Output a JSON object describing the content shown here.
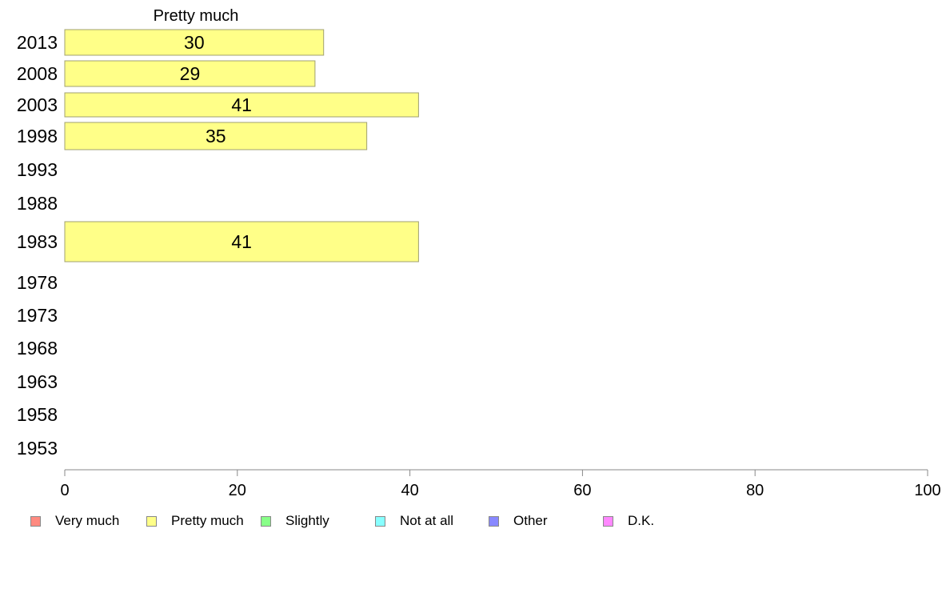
{
  "chart_data": {
    "type": "bar",
    "orientation": "horizontal",
    "title": "Pretty much",
    "categories": [
      "2013",
      "2008",
      "2003",
      "1998",
      "1993",
      "1988",
      "1983",
      "1978",
      "1973",
      "1968",
      "1963",
      "1958",
      "1953"
    ],
    "series": [
      {
        "name": "Pretty much",
        "color": "#ffff88",
        "values": [
          30,
          29,
          41,
          35,
          null,
          null,
          41,
          null,
          null,
          null,
          null,
          null,
          null
        ]
      }
    ],
    "xlim": [
      0,
      100
    ],
    "xticks": [
      0,
      20,
      40,
      60,
      80,
      100
    ],
    "xlabel": "",
    "ylabel": "",
    "grid": false,
    "legend": {
      "placement": "bottom",
      "items": [
        {
          "label": "Very much",
          "color": "#ff8a80"
        },
        {
          "label": "Pretty much",
          "color": "#ffff88"
        },
        {
          "label": "Slightly",
          "color": "#88ff88"
        },
        {
          "label": "Not at all",
          "color": "#88ffff"
        },
        {
          "label": "Other",
          "color": "#8888ff"
        },
        {
          "label": "D.K.",
          "color": "#ff88ff"
        }
      ]
    }
  }
}
